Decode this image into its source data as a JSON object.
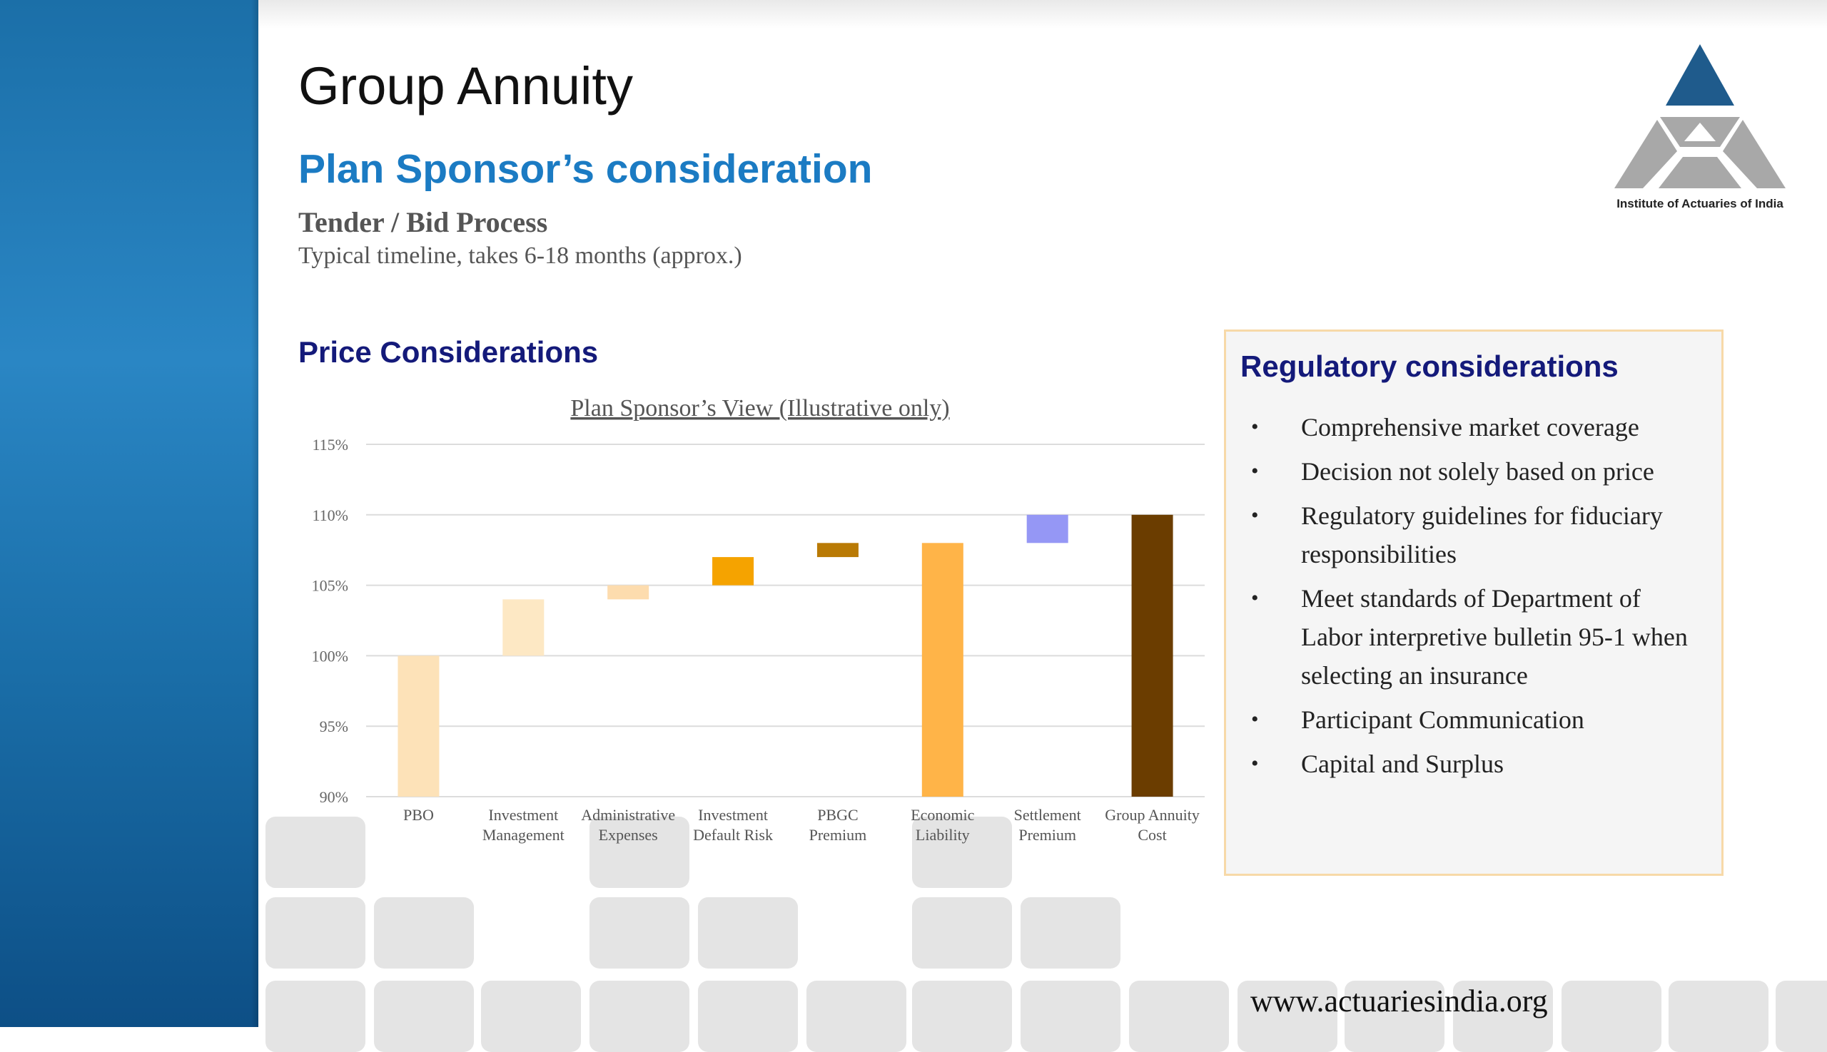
{
  "slide": {
    "title": "Group Annuity",
    "heading": "Plan Sponsor’s consideration",
    "section": "Tender / Bid Process",
    "subtitle": "Typical timeline, takes 6-18 months (approx.)",
    "price_heading": "Price Considerations",
    "logo_text": "Institute of Actuaries of India",
    "footer_url": "www.actuariesindia.org"
  },
  "colors": {
    "sidebar": "#1b6fa8",
    "heading_blue": "#1b7bc3",
    "dark_navy": "#141a7a",
    "box_border": "#f7d9a8",
    "logo_blue": "#1f5b8c",
    "logo_gray": "#a8a8a8"
  },
  "regulatory": {
    "title": "Regulatory considerations",
    "items": [
      "Comprehensive market coverage",
      "Decision not solely based on price",
      "Regulatory guidelines for fiduciary responsibilities",
      "Meet standards of Department of Labor interpretive bulletin 95-1 when selecting an insurance",
      "Participant Communication",
      "Capital and Surplus"
    ]
  },
  "chart_data": {
    "type": "bar",
    "title": "Plan Sponsor’s View (Illustrative only)",
    "xlabel": "",
    "ylabel": "",
    "ylim": [
      90,
      115
    ],
    "yticks": [
      "90%",
      "95%",
      "100%",
      "105%",
      "110%",
      "115%"
    ],
    "ytick_values": [
      90,
      95,
      100,
      105,
      110,
      115
    ],
    "grid": true,
    "categories": [
      [
        "PBO"
      ],
      [
        "Investment",
        "Management"
      ],
      [
        "Administrative",
        "Expenses"
      ],
      [
        "Investment",
        "Default Risk"
      ],
      [
        "PBGC",
        "Premium"
      ],
      [
        "Economic",
        "Liability"
      ],
      [
        "Settlement",
        "Premium"
      ],
      [
        "Group Annuity",
        "Cost"
      ]
    ],
    "bars": [
      {
        "low": 90,
        "high": 100,
        "color": "#fde2b8"
      },
      {
        "low": 100,
        "high": 104,
        "color": "#fde8c4"
      },
      {
        "low": 104,
        "high": 105,
        "color": "#fddcae"
      },
      {
        "low": 105,
        "high": 107,
        "color": "#f5a300"
      },
      {
        "low": 107,
        "high": 108,
        "color": "#b97a05"
      },
      {
        "low": 90,
        "high": 108,
        "color": "#ffb448"
      },
      {
        "low": 108,
        "high": 110,
        "color": "#9597f5"
      },
      {
        "low": 90,
        "high": 110,
        "color": "#6b3d00"
      }
    ]
  }
}
